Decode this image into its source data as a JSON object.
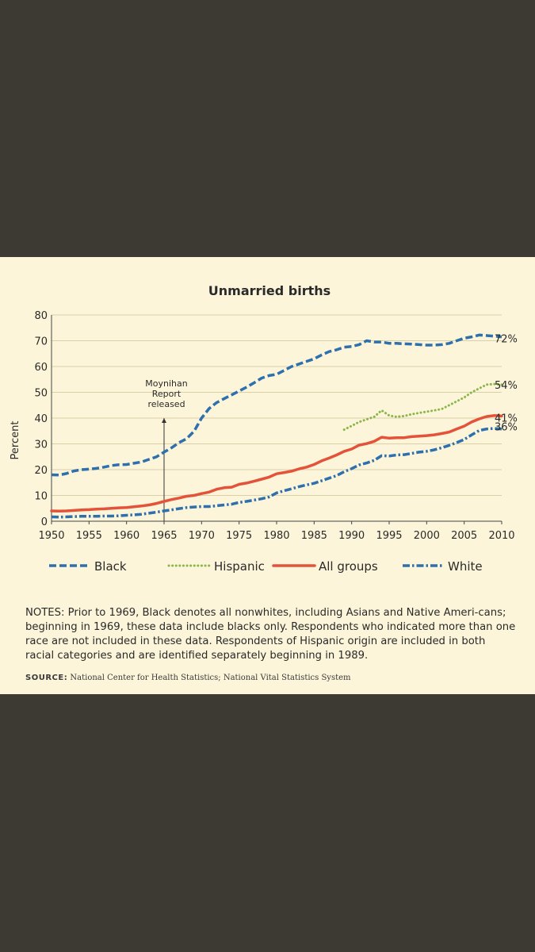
{
  "chart_data": {
    "type": "line",
    "title": "Unmarried births",
    "ylabel": "Percent",
    "xlabel": "",
    "xlim": [
      1950,
      2010
    ],
    "ylim": [
      0,
      80
    ],
    "x_ticks": [
      1950,
      1955,
      1960,
      1965,
      1970,
      1975,
      1980,
      1985,
      1990,
      1995,
      2000,
      2005,
      2010
    ],
    "y_ticks": [
      0,
      10,
      20,
      30,
      40,
      50,
      60,
      70,
      80
    ],
    "grid": true,
    "annotation": {
      "lines": [
        "Moynihan",
        "Report",
        "released"
      ],
      "year": 1965,
      "value": 0
    },
    "series": [
      {
        "name": "Black",
        "color": "#2e6fad",
        "end_label": "72%",
        "points": [
          [
            1950,
            18
          ],
          [
            1951,
            17.9
          ],
          [
            1952,
            18.5
          ],
          [
            1953,
            19.5
          ],
          [
            1954,
            20
          ],
          [
            1955,
            20.2
          ],
          [
            1956,
            20.5
          ],
          [
            1957,
            21
          ],
          [
            1958,
            21.6
          ],
          [
            1959,
            21.9
          ],
          [
            1960,
            22
          ],
          [
            1961,
            22.5
          ],
          [
            1962,
            23
          ],
          [
            1963,
            24
          ],
          [
            1964,
            25
          ],
          [
            1965,
            26.8
          ],
          [
            1966,
            28.5
          ],
          [
            1967,
            30.5
          ],
          [
            1968,
            32
          ],
          [
            1969,
            34.9
          ],
          [
            1970,
            40
          ],
          [
            1971,
            43.7
          ],
          [
            1972,
            46
          ],
          [
            1973,
            47.5
          ],
          [
            1974,
            49
          ],
          [
            1975,
            50.5
          ],
          [
            1976,
            52
          ],
          [
            1977,
            53.7
          ],
          [
            1978,
            55.5
          ],
          [
            1979,
            56.5
          ],
          [
            1980,
            57
          ],
          [
            1981,
            58.5
          ],
          [
            1982,
            60
          ],
          [
            1983,
            61
          ],
          [
            1984,
            62
          ],
          [
            1985,
            63
          ],
          [
            1986,
            64.5
          ],
          [
            1987,
            65.8
          ],
          [
            1988,
            66.5
          ],
          [
            1989,
            67.5
          ],
          [
            1990,
            67.8
          ],
          [
            1991,
            68.5
          ],
          [
            1992,
            70
          ],
          [
            1993,
            69.5
          ],
          [
            1994,
            69.5
          ],
          [
            1995,
            69
          ],
          [
            1996,
            69
          ],
          [
            1997,
            68.8
          ],
          [
            1998,
            68.7
          ],
          [
            1999,
            68.5
          ],
          [
            2000,
            68.3
          ],
          [
            2001,
            68.3
          ],
          [
            2002,
            68.5
          ],
          [
            2003,
            69
          ],
          [
            2004,
            70
          ],
          [
            2005,
            71
          ],
          [
            2006,
            71.5
          ],
          [
            2007,
            72.2
          ],
          [
            2008,
            72
          ],
          [
            2009,
            71.8
          ],
          [
            2010,
            71.5
          ]
        ]
      },
      {
        "name": "Hispanic",
        "color": "#8ab64a",
        "end_label": "54%",
        "points": [
          [
            1989,
            35.5
          ],
          [
            1990,
            37
          ],
          [
            1991,
            38.5
          ],
          [
            1992,
            39.5
          ],
          [
            1993,
            40.5
          ],
          [
            1994,
            43
          ],
          [
            1995,
            41
          ],
          [
            1996,
            40.5
          ],
          [
            1997,
            40.8
          ],
          [
            1998,
            41.5
          ],
          [
            1999,
            42
          ],
          [
            2000,
            42.5
          ],
          [
            2001,
            43
          ],
          [
            2002,
            43.5
          ],
          [
            2003,
            45
          ],
          [
            2004,
            46.5
          ],
          [
            2005,
            48
          ],
          [
            2006,
            50
          ],
          [
            2007,
            51.5
          ],
          [
            2008,
            53
          ],
          [
            2009,
            53.2
          ],
          [
            2010,
            53
          ]
        ]
      },
      {
        "name": "All groups",
        "color": "#e2533a",
        "end_label": "41%",
        "points": [
          [
            1950,
            4
          ],
          [
            1951,
            3.9
          ],
          [
            1952,
            4
          ],
          [
            1953,
            4.2
          ],
          [
            1954,
            4.4
          ],
          [
            1955,
            4.5
          ],
          [
            1956,
            4.7
          ],
          [
            1957,
            4.8
          ],
          [
            1958,
            5
          ],
          [
            1959,
            5.2
          ],
          [
            1960,
            5.3
          ],
          [
            1961,
            5.6
          ],
          [
            1962,
            5.9
          ],
          [
            1963,
            6.3
          ],
          [
            1964,
            6.9
          ],
          [
            1965,
            7.7
          ],
          [
            1966,
            8.4
          ],
          [
            1967,
            9
          ],
          [
            1968,
            9.7
          ],
          [
            1969,
            10
          ],
          [
            1970,
            10.7
          ],
          [
            1971,
            11.3
          ],
          [
            1972,
            12.4
          ],
          [
            1973,
            13
          ],
          [
            1974,
            13.2
          ],
          [
            1975,
            14.3
          ],
          [
            1976,
            14.8
          ],
          [
            1977,
            15.5
          ],
          [
            1978,
            16.3
          ],
          [
            1979,
            17.1
          ],
          [
            1980,
            18.4
          ],
          [
            1981,
            18.9
          ],
          [
            1982,
            19.4
          ],
          [
            1983,
            20.3
          ],
          [
            1984,
            21
          ],
          [
            1985,
            22
          ],
          [
            1986,
            23.4
          ],
          [
            1987,
            24.5
          ],
          [
            1988,
            25.7
          ],
          [
            1989,
            27.1
          ],
          [
            1990,
            28
          ],
          [
            1991,
            29.5
          ],
          [
            1992,
            30.1
          ],
          [
            1993,
            31
          ],
          [
            1994,
            32.6
          ],
          [
            1995,
            32.2
          ],
          [
            1996,
            32.4
          ],
          [
            1997,
            32.4
          ],
          [
            1998,
            32.8
          ],
          [
            1999,
            33
          ],
          [
            2000,
            33.2
          ],
          [
            2001,
            33.5
          ],
          [
            2002,
            34
          ],
          [
            2003,
            34.6
          ],
          [
            2004,
            35.8
          ],
          [
            2005,
            36.9
          ],
          [
            2006,
            38.5
          ],
          [
            2007,
            39.7
          ],
          [
            2008,
            40.6
          ],
          [
            2009,
            41
          ],
          [
            2010,
            40.8
          ]
        ]
      },
      {
        "name": "White",
        "color": "#2e6fad",
        "end_label": "36%",
        "points": [
          [
            1950,
            1.7
          ],
          [
            1951,
            1.6
          ],
          [
            1952,
            1.7
          ],
          [
            1953,
            1.8
          ],
          [
            1954,
            1.9
          ],
          [
            1955,
            1.9
          ],
          [
            1956,
            1.9
          ],
          [
            1957,
            2
          ],
          [
            1958,
            2
          ],
          [
            1959,
            2.1
          ],
          [
            1960,
            2.3
          ],
          [
            1961,
            2.5
          ],
          [
            1962,
            2.7
          ],
          [
            1963,
            3.1
          ],
          [
            1964,
            3.5
          ],
          [
            1965,
            4
          ],
          [
            1966,
            4.4
          ],
          [
            1967,
            4.9
          ],
          [
            1968,
            5.3
          ],
          [
            1969,
            5.5
          ],
          [
            1970,
            5.7
          ],
          [
            1971,
            5.7
          ],
          [
            1972,
            6
          ],
          [
            1973,
            6.3
          ],
          [
            1974,
            6.6
          ],
          [
            1975,
            7.3
          ],
          [
            1976,
            7.7
          ],
          [
            1977,
            8.2
          ],
          [
            1978,
            8.7
          ],
          [
            1979,
            9.4
          ],
          [
            1980,
            11
          ],
          [
            1981,
            11.8
          ],
          [
            1982,
            12.6
          ],
          [
            1983,
            13.4
          ],
          [
            1984,
            14.1
          ],
          [
            1985,
            14.7
          ],
          [
            1986,
            15.7
          ],
          [
            1987,
            16.7
          ],
          [
            1988,
            17.7
          ],
          [
            1989,
            19.2
          ],
          [
            1990,
            20.4
          ],
          [
            1991,
            21.8
          ],
          [
            1992,
            22.6
          ],
          [
            1993,
            23.6
          ],
          [
            1994,
            25.4
          ],
          [
            1995,
            25.3
          ],
          [
            1996,
            25.7
          ],
          [
            1997,
            25.8
          ],
          [
            1998,
            26.3
          ],
          [
            1999,
            26.8
          ],
          [
            2000,
            27.1
          ],
          [
            2001,
            27.7
          ],
          [
            2002,
            28.5
          ],
          [
            2003,
            29.4
          ],
          [
            2004,
            30.5
          ],
          [
            2005,
            31.7
          ],
          [
            2006,
            33.5
          ],
          [
            2007,
            35.2
          ],
          [
            2008,
            35.8
          ],
          [
            2009,
            36
          ],
          [
            2010,
            35.8
          ]
        ]
      }
    ]
  },
  "notes": "NOTES: Prior to 1969, Black denotes all nonwhites, including Asians and Native Ameri-cans; beginning in 1969, these data include blacks only. Respondents who indicated more than one race are not included in these data. Respondents of Hispanic origin are included in both racial categories and are identified separately beginning in 1989.",
  "source": {
    "label": "SOURCE:",
    "text": "National Center for Health Statistics; National Vital Statistics System"
  }
}
